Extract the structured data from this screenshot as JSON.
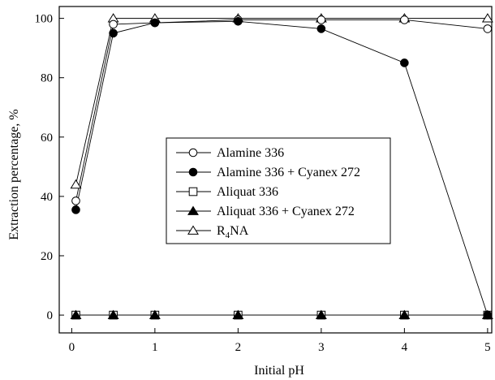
{
  "chart_data": {
    "type": "line",
    "title": "",
    "xlabel": "Initial pH",
    "ylabel": "Extraction percentage, %",
    "xlim": [
      -0.15,
      5.05
    ],
    "ylim": [
      -6,
      104
    ],
    "xticks": [
      0,
      1,
      2,
      3,
      4,
      5
    ],
    "yticks": [
      0,
      20,
      40,
      60,
      80,
      100
    ],
    "grid": false,
    "legend_position": "center-left",
    "series": [
      {
        "name": "Alamine 336",
        "marker": "open-circle",
        "x": [
          0.05,
          0.5,
          1,
          2,
          3,
          4,
          5
        ],
        "y": [
          38.5,
          98,
          98.5,
          99.5,
          99.5,
          99.5,
          96.5
        ]
      },
      {
        "name": "Alamine 336 + Cyanex 272",
        "marker": "filled-circle",
        "x": [
          0.05,
          0.5,
          1,
          2,
          3,
          4,
          5
        ],
        "y": [
          35.5,
          95,
          98.5,
          99,
          96.5,
          85,
          0
        ]
      },
      {
        "name": "Aliquat 336",
        "marker": "open-square",
        "x": [
          0.05,
          0.5,
          1,
          2,
          3,
          4,
          5
        ],
        "y": [
          0,
          0,
          0,
          0,
          0,
          0,
          0
        ]
      },
      {
        "name": "Aliquat 336 + Cyanex 272",
        "marker": "filled-triangle",
        "x": [
          0.05,
          0.5,
          1,
          2,
          3,
          4,
          5
        ],
        "y": [
          0,
          0,
          0,
          0,
          0,
          0,
          0
        ]
      },
      {
        "name": "R4NA",
        "name_main": "R",
        "name_sub": "4",
        "name_rest": "NA",
        "marker": "open-triangle",
        "x": [
          0.05,
          0.5,
          1,
          2,
          3,
          4,
          5
        ],
        "y": [
          44,
          100,
          100,
          100,
          100,
          100,
          100
        ]
      }
    ]
  }
}
